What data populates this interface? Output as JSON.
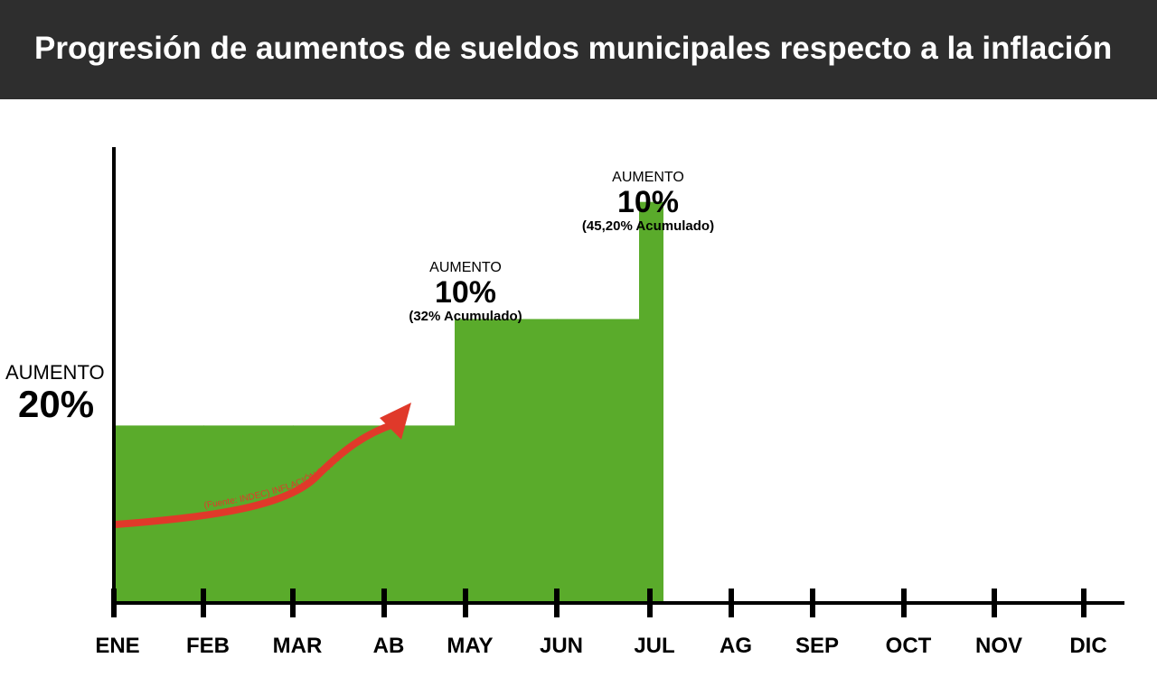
{
  "header": {
    "title": "Progresión de aumentos de sueldos municipales respecto a la inflación"
  },
  "colors": {
    "header_bg": "#2e2e2e",
    "bar": "#5aab2b",
    "arrow": "#e0392a",
    "axis": "#000000"
  },
  "annotations": [
    {
      "label": "AUMENTO",
      "value": "20%",
      "note": ""
    },
    {
      "label": "AUMENTO",
      "value": "10%",
      "note": "(32% Acumulado)"
    },
    {
      "label": "AUMENTO",
      "value": "10%",
      "note": "(45,20% Acumulado)"
    }
  ],
  "arrow_text": "(Fuente: INDEC) INFLACIÓN 22,8%",
  "chart_data": {
    "type": "area",
    "title": "Progresión de aumentos de sueldos municipales respecto a la inflación",
    "categories": [
      "ENE",
      "FEB",
      "MAR",
      "AB",
      "MAY",
      "JUN",
      "JUL",
      "AG",
      "SEP",
      "OCT",
      "NOV",
      "DIC"
    ],
    "series": [
      {
        "values": [
          20,
          20,
          20,
          20,
          32,
          32,
          45.2,
          null,
          null,
          null,
          null,
          null
        ],
        "increments": [
          20,
          0,
          0,
          0,
          10,
          0,
          10,
          null,
          null,
          null,
          null,
          null
        ]
      }
    ],
    "inflation_arrow": {
      "value": 22.8,
      "from": "ENE",
      "to": "AB"
    },
    "xlabel": "",
    "ylabel": "",
    "ylim": [
      0,
      50
    ],
    "grid": false,
    "legend": "none"
  }
}
